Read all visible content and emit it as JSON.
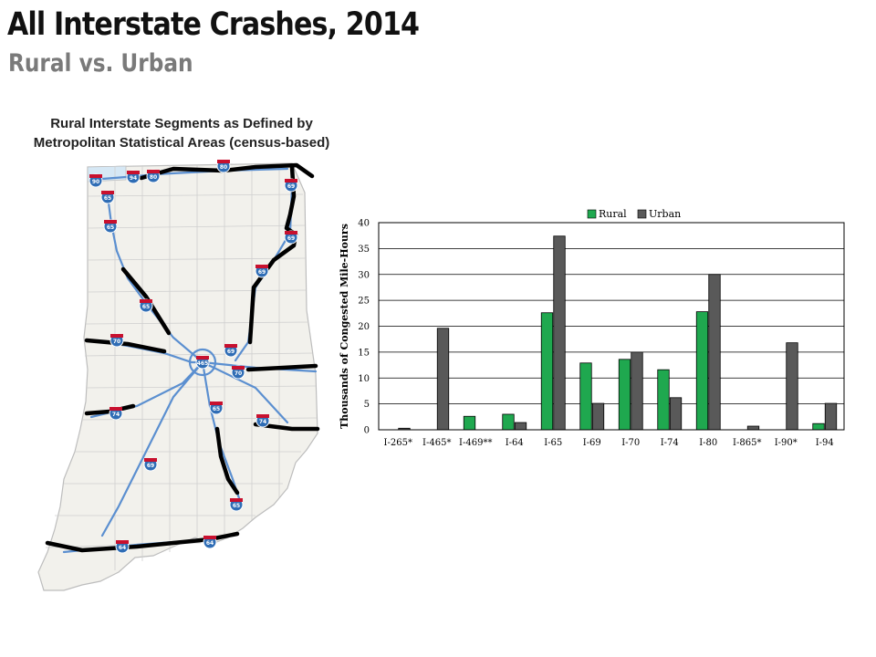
{
  "slide": {
    "title": "All Interstate Crashes, 2014",
    "subtitle": "Rural vs. Urban"
  },
  "map": {
    "caption_line1": "Rural Interstate Segments as Defined by",
    "caption_line2": "Metropolitan Statistical Areas (census-based)",
    "shields": [
      "90",
      "94",
      "80",
      "80",
      "69",
      "65",
      "65",
      "65",
      "69",
      "69",
      "70",
      "465",
      "69",
      "74",
      "65",
      "69",
      "64",
      "64",
      "65",
      "70",
      "74"
    ]
  },
  "chart_data": {
    "type": "bar",
    "categories": [
      "I-265*",
      "I-465*",
      "I-469**",
      "I-64",
      "I-65",
      "I-69",
      "I-70",
      "I-74",
      "I-80",
      "I-865*",
      "I-90*",
      "I-94"
    ],
    "series": [
      {
        "name": "Rural",
        "color": "#1fa84f",
        "values": [
          0,
          0,
          2.6,
          3.0,
          22.6,
          12.9,
          13.6,
          11.6,
          22.8,
          0,
          0,
          1.2
        ]
      },
      {
        "name": "Urban",
        "color": "#595959",
        "values": [
          0.3,
          19.6,
          0,
          1.4,
          37.4,
          5.1,
          15.0,
          6.2,
          30.0,
          0.7,
          16.8,
          5.1
        ]
      }
    ],
    "ylabel": "Thousands of Congested Mile-Hours",
    "ylim": [
      0,
      40
    ],
    "yticks": [
      0,
      5,
      10,
      15,
      20,
      25,
      30,
      35,
      40
    ],
    "grid": true,
    "legend": "top-center"
  }
}
